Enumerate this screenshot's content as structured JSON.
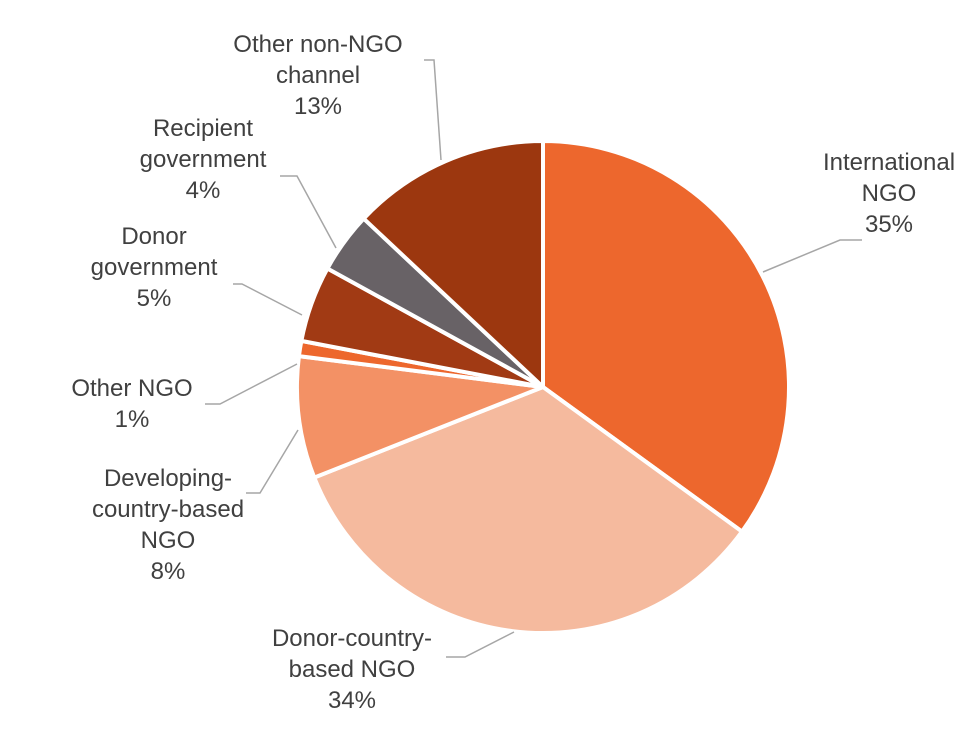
{
  "chart_data": {
    "type": "pie",
    "title": "",
    "legend": "none",
    "slices": [
      {
        "name": "International NGO",
        "label_lines": [
          "International",
          "NGO"
        ],
        "value": 35,
        "pct_label": "35%",
        "color": "#ED672D"
      },
      {
        "name": "Donor-country-based NGO",
        "label_lines": [
          "Donor-country-",
          "based NGO"
        ],
        "value": 34,
        "pct_label": "34%",
        "color": "#F5BA9E"
      },
      {
        "name": "Developing-country-based NGO",
        "label_lines": [
          "Developing-",
          "country-based",
          "NGO"
        ],
        "value": 8,
        "pct_label": "8%",
        "color": "#F39165"
      },
      {
        "name": "Other NGO",
        "label_lines": [
          "Other NGO"
        ],
        "value": 1,
        "pct_label": "1%",
        "color": "#ED672D"
      },
      {
        "name": "Donor government",
        "label_lines": [
          "Donor",
          "government"
        ],
        "value": 5,
        "pct_label": "5%",
        "color": "#A13A14"
      },
      {
        "name": "Recipient government",
        "label_lines": [
          "Recipient",
          "government"
        ],
        "value": 4,
        "pct_label": "4%",
        "color": "#686266"
      },
      {
        "name": "Other non-NGO channel",
        "label_lines": [
          "Other non-NGO",
          "channel"
        ],
        "value": 13,
        "pct_label": "13%",
        "color": "#9C370F"
      }
    ]
  }
}
